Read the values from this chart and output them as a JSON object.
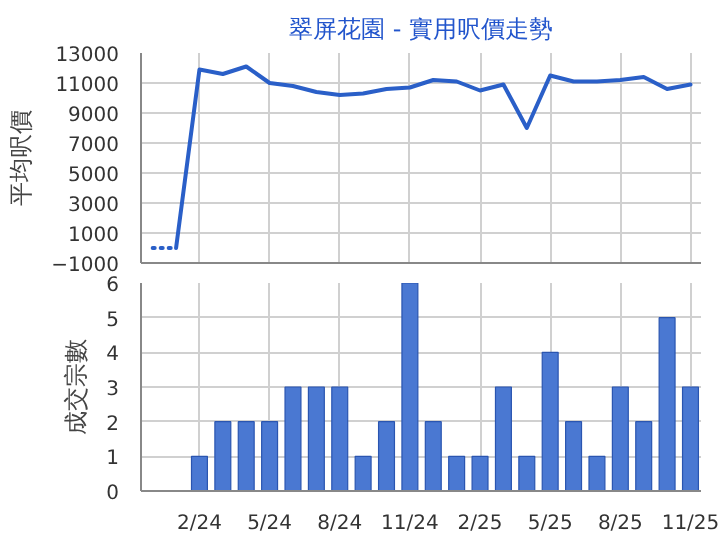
{
  "chart_data": [
    {
      "type": "line",
      "title": "翠屏花園 - 實用呎價走勢",
      "ylabel": "平均呎價",
      "categories": [
        null,
        null,
        null,
        null,
        null,
        null,
        null,
        null,
        null,
        null,
        null,
        null,
        null,
        null,
        null,
        null,
        null,
        null,
        null,
        null,
        null,
        null,
        null,
        null
      ],
      "series": [
        {
          "color": "#2a5fc8",
          "line_style": "dotted",
          "values": [
            0,
            0,
            null,
            null,
            null,
            null,
            null,
            null,
            null,
            null,
            null,
            null,
            null,
            null,
            null,
            null,
            null,
            null,
            null,
            null,
            null,
            null,
            null,
            null
          ]
        },
        {
          "color": "#2a5fc8",
          "line_style": "solid",
          "values": [
            null,
            0,
            11900,
            11600,
            12100,
            11000,
            10800,
            10400,
            10200,
            10300,
            10600,
            10700,
            11200,
            11100,
            10500,
            10900,
            8000,
            11500,
            11100,
            11100,
            11200,
            11400,
            10600,
            10900
          ]
        }
      ],
      "ylim": [
        -1000,
        13000
      ],
      "yticks": [
        -1000,
        1000,
        3000,
        5000,
        7000,
        9000,
        11000,
        13000
      ],
      "grid": true,
      "marker": "none",
      "tick_labels": "y"
    },
    {
      "type": "bar",
      "ylabel": "成交宗數",
      "categories": [
        null,
        null,
        "2/24",
        null,
        null,
        "5/24",
        null,
        null,
        "8/24",
        null,
        null,
        "11/24",
        null,
        null,
        "2/25",
        null,
        null,
        "5/25",
        null,
        null,
        "8/25",
        null,
        null,
        "11/25"
      ],
      "series": [
        {
          "color": "#4a78d2",
          "values": [
            null,
            null,
            1,
            2,
            2,
            2,
            3,
            3,
            3,
            1,
            2,
            6,
            2,
            1,
            1,
            3,
            1,
            4,
            2,
            1,
            3,
            2,
            5,
            3
          ]
        }
      ],
      "ylim": [
        0,
        6
      ],
      "yticks": [
        0,
        1,
        2,
        3,
        4,
        5,
        6
      ],
      "grid": true
    }
  ]
}
